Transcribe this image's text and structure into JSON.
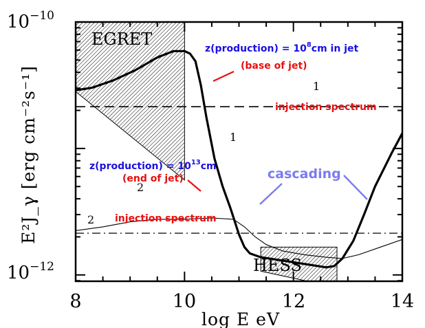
{
  "chart_data": {
    "type": "line",
    "xlabel": "log E eV",
    "ylabel": "E²J_γ [erg cm⁻²s⁻¹]",
    "xlim": [
      8,
      14
    ],
    "ylim": [
      -12.05,
      -10
    ],
    "y_scale": "log",
    "x_ticks": [
      "8",
      "10",
      "12",
      "14"
    ],
    "y_ticks": [
      {
        "base": "10",
        "exp": "−10",
        "value": -10
      },
      {
        "base": "10",
        "exp": "−12",
        "value": -12
      }
    ],
    "series": [
      {
        "name": "1",
        "style": "thick solid",
        "x": [
          8.0,
          8.3,
          8.7,
          9.1,
          9.5,
          9.8,
          10.0,
          10.1,
          10.2,
          10.3,
          10.4,
          10.55,
          10.7,
          10.85,
          11.0,
          11.1,
          11.2,
          11.4,
          11.7,
          12.0,
          12.3,
          12.6,
          12.75,
          12.9,
          13.1,
          13.3,
          13.5,
          13.8,
          14.0
        ],
        "y": [
          -10.54,
          -10.52,
          -10.46,
          -10.38,
          -10.28,
          -10.23,
          -10.23,
          -10.25,
          -10.31,
          -10.5,
          -10.75,
          -11.08,
          -11.3,
          -11.48,
          -11.68,
          -11.78,
          -11.83,
          -11.86,
          -11.88,
          -11.9,
          -11.92,
          -11.94,
          -11.93,
          -11.87,
          -11.73,
          -11.52,
          -11.3,
          -11.04,
          -10.88
        ]
      },
      {
        "name": "2",
        "style": "thin solid",
        "x": [
          8.0,
          8.5,
          9.0,
          9.5,
          10.0,
          10.5,
          10.9,
          11.1,
          11.3,
          11.5,
          11.8,
          12.2,
          12.6,
          12.9,
          13.2,
          13.6,
          14.0
        ],
        "y": [
          -11.65,
          -11.62,
          -11.58,
          -11.56,
          -11.56,
          -11.55,
          -11.56,
          -11.62,
          -11.7,
          -11.76,
          -11.81,
          -11.84,
          -11.86,
          -11.87,
          -11.84,
          -11.78,
          -11.72
        ]
      },
      {
        "name": "1 injection spectrum",
        "style": "long dash",
        "x": [
          8.0,
          14.0
        ],
        "y": [
          -10.67,
          -10.67
        ]
      },
      {
        "name": "2 injection spectrum",
        "style": "dash dot",
        "x": [
          8.0,
          14.0
        ],
        "y": [
          -11.67,
          -11.67
        ]
      }
    ],
    "shaded_regions": [
      {
        "name": "EGRET",
        "x": [
          8.0,
          10.0,
          10.0,
          8.0
        ],
        "y": [
          -10.0,
          -10.0,
          -11.25,
          -10.55
        ]
      },
      {
        "name": "HESS",
        "x": [
          11.4,
          12.8,
          12.8,
          11.4
        ],
        "y": [
          -11.78,
          -11.78,
          -12.1,
          -11.97
        ]
      }
    ],
    "annotations": [
      {
        "text": "EGRET",
        "color": "#000000"
      },
      {
        "text": "HESS",
        "color": "#000000"
      },
      {
        "text": "z(production) = 10",
        "sup": "8",
        "tail": "cm in jet",
        "color": "#1a10e0"
      },
      {
        "text": "(base of jet)",
        "color": "#e81010"
      },
      {
        "text": "1",
        "color": "#000000"
      },
      {
        "text": "injection spectrum",
        "color": "#e81010"
      },
      {
        "text": "1",
        "color": "#000000"
      },
      {
        "text": "z(production) = 10",
        "sup": "13",
        "tail": "cm",
        "color": "#1a10e0"
      },
      {
        "text": "(end of jet)",
        "color": "#e81010"
      },
      {
        "text": "2",
        "color": "#000000"
      },
      {
        "text": "2",
        "color": "#000000"
      },
      {
        "text": "injection spectrum",
        "color": "#e81010"
      },
      {
        "text": "cascading",
        "color": "#7b7bf0"
      }
    ],
    "grid": false
  },
  "colors": {
    "blue_label": "#1a10e0",
    "red_label": "#e81010",
    "cascading": "#7b7bf0",
    "axes": "#000000"
  }
}
